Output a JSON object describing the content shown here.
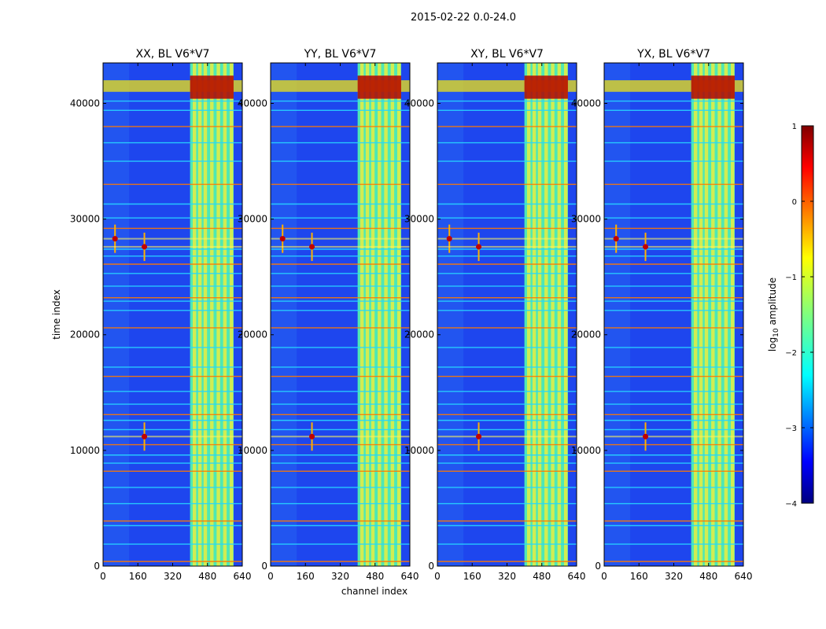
{
  "suptitle": "2015-02-22 0.0-24.0",
  "chart_data": {
    "type": "heatmap",
    "xlabel": "channel index",
    "ylabel": "time index",
    "xlim": [
      0,
      640
    ],
    "ylim": [
      0,
      43500
    ],
    "xticks": [
      0,
      160,
      320,
      480,
      640
    ],
    "yticks": [
      0,
      10000,
      20000,
      30000,
      40000
    ],
    "panels": [
      {
        "title": "XX, BL V6*V7"
      },
      {
        "title": "YY, BL V6*V7"
      },
      {
        "title": "XY, BL V6*V7"
      },
      {
        "title": "YX, BL V6*V7"
      }
    ],
    "colorbar": {
      "label_prefix": "log",
      "label_sub": "10",
      "label_suffix": " amplitude",
      "min": -4,
      "max": 1,
      "ticks": [
        1,
        0,
        -1,
        -2,
        -3,
        -4
      ],
      "tick_labels": [
        "1",
        "0",
        "−1",
        "−2",
        "−3",
        "−4"
      ],
      "colormap": "jet"
    },
    "features": {
      "high_band_channels": [
        400,
        600
      ],
      "bright_columns": [
        420,
        445,
        470,
        500,
        530,
        560,
        590
      ],
      "strong_row_band_times": [
        41000,
        42000
      ],
      "rfi_bursts": [
        {
          "time": 11200,
          "channel": 190
        },
        {
          "time": 28300,
          "channel": 55
        },
        {
          "time": 27600,
          "channel": 190
        }
      ],
      "horizontal_line_times": [
        400,
        1900,
        3500,
        3900,
        5400,
        6800,
        8200,
        8900,
        9600,
        10500,
        11800,
        12600,
        13100,
        14000,
        15100,
        16400,
        17200,
        18900,
        20600,
        22100,
        22900,
        23200,
        24200,
        25300,
        26100,
        26800,
        27400,
        29200,
        30100,
        31300,
        33000,
        35000,
        36600,
        38000,
        39400,
        40200
      ]
    }
  }
}
